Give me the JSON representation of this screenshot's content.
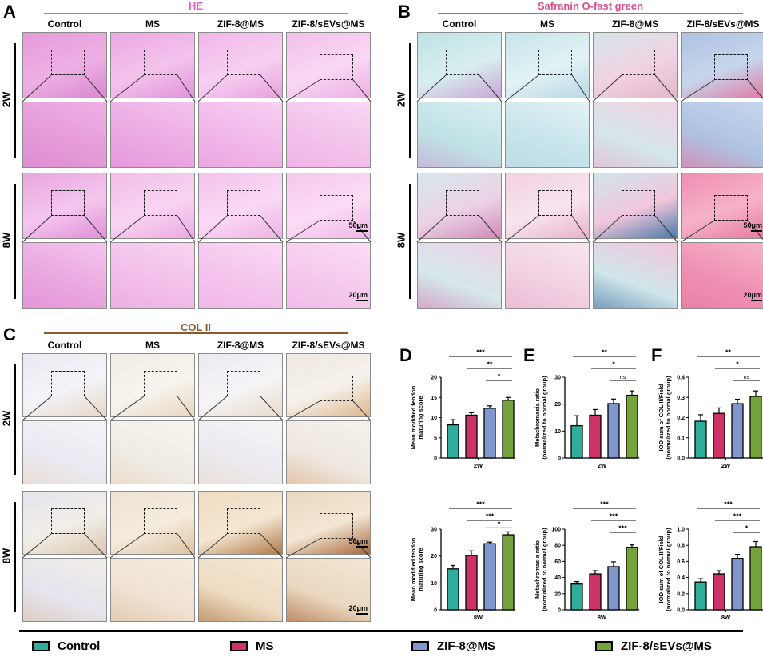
{
  "groups": [
    "Control",
    "MS",
    "ZIF-8@MS",
    "ZIF-8/sEVs@MS"
  ],
  "group_colors": [
    "#2fae9c",
    "#cc3366",
    "#7f97cc",
    "#74a33b"
  ],
  "timepoints": [
    "2W",
    "8W"
  ],
  "panels": {
    "A": {
      "letter": "A",
      "title": "HE",
      "title_color": "#ee55cc",
      "scale_low": "50μm",
      "scale_high": "20μm"
    },
    "B": {
      "letter": "B",
      "title": "Safranin O-fast green",
      "title_color": "#d9508a",
      "scale_low": "50μm",
      "scale_high": "20μm"
    },
    "C": {
      "letter": "C",
      "title": "COL II",
      "title_color": "#8a5a2b",
      "scale_low": "50μm",
      "scale_high": "20μm"
    },
    "D": {
      "letter": "D"
    },
    "E": {
      "letter": "E"
    },
    "F": {
      "letter": "F"
    }
  },
  "legend": [
    {
      "label": "Control",
      "color": "#2fae9c"
    },
    {
      "label": "MS",
      "color": "#cc3366"
    },
    {
      "label": "ZIF-8@MS",
      "color": "#7f97cc"
    },
    {
      "label": "ZIF-8/sEVs@MS",
      "color": "#74a33b"
    }
  ],
  "chart_data": [
    {
      "id": "D-2W",
      "type": "bar",
      "title": "",
      "xlabel": "2W",
      "ylabel": "Mean modified tendon maturing score",
      "categories": [
        "Control",
        "MS",
        "ZIF-8@MS",
        "ZIF-8/sEVs@MS"
      ],
      "values": [
        8.2,
        10.6,
        12.3,
        14.3
      ],
      "errors": [
        1.3,
        0.6,
        0.6,
        0.7
      ],
      "ylim": [
        0,
        20
      ],
      "yticks": [
        0,
        5,
        10,
        15,
        20
      ],
      "ytick_labels": [
        "0",
        "5",
        "10",
        "15",
        "20"
      ],
      "significance": [
        {
          "from": 0,
          "to": 3,
          "label": "***"
        },
        {
          "from": 1,
          "to": 3,
          "label": "**"
        },
        {
          "from": 2,
          "to": 3,
          "label": "*"
        }
      ]
    },
    {
      "id": "D-8W",
      "type": "bar",
      "title": "",
      "xlabel": "8W",
      "ylabel": "Mean modified tendon maturing score",
      "categories": [
        "Control",
        "MS",
        "ZIF-8@MS",
        "ZIF-8/sEVs@MS"
      ],
      "values": [
        15.2,
        20.2,
        24.6,
        27.9
      ],
      "errors": [
        1.3,
        1.7,
        0.6,
        1.1
      ],
      "ylim": [
        0,
        30
      ],
      "yticks": [
        0,
        10,
        20,
        30
      ],
      "ytick_labels": [
        "0",
        "10",
        "20",
        "30"
      ],
      "significance": [
        {
          "from": 0,
          "to": 3,
          "label": "***"
        },
        {
          "from": 1,
          "to": 3,
          "label": "***"
        },
        {
          "from": 2,
          "to": 3,
          "label": "*"
        }
      ]
    },
    {
      "id": "E-2W",
      "type": "bar",
      "title": "",
      "xlabel": "2W",
      "ylabel": "Metachromasia ratio (normalized to normal group)",
      "categories": [
        "Control",
        "MS",
        "ZIF-8@MS",
        "ZIF-8/sEVs@MS"
      ],
      "values": [
        12.0,
        15.9,
        20.2,
        23.3
      ],
      "errors": [
        3.7,
        2.1,
        1.7,
        1.6
      ],
      "ylim": [
        0,
        30
      ],
      "yticks": [
        0,
        10,
        20,
        30
      ],
      "ytick_labels": [
        "0",
        "10",
        "20",
        "30"
      ],
      "significance": [
        {
          "from": 0,
          "to": 3,
          "label": "**"
        },
        {
          "from": 1,
          "to": 3,
          "label": "*"
        },
        {
          "from": 2,
          "to": 3,
          "label": "ns"
        }
      ]
    },
    {
      "id": "E-8W",
      "type": "bar",
      "title": "",
      "xlabel": "8W",
      "ylabel": "Metachromasia ratio (normalized to normal group)",
      "categories": [
        "Control",
        "MS",
        "ZIF-8@MS",
        "ZIF-8/sEVs@MS"
      ],
      "values": [
        32.0,
        44.5,
        53.5,
        77.5
      ],
      "errors": [
        3.0,
        4.0,
        6.0,
        3.0
      ],
      "ylim": [
        0,
        100
      ],
      "yticks": [
        0,
        20,
        40,
        60,
        80,
        100
      ],
      "ytick_labels": [
        "0",
        "20",
        "40",
        "60",
        "80",
        "100"
      ],
      "significance": [
        {
          "from": 0,
          "to": 3,
          "label": "***"
        },
        {
          "from": 1,
          "to": 3,
          "label": "***"
        },
        {
          "from": 2,
          "to": 3,
          "label": "***"
        }
      ]
    },
    {
      "id": "F-2W",
      "type": "bar",
      "title": "",
      "xlabel": "2W",
      "ylabel": "IOD sum of COL II/Field (normalized to normal group)",
      "categories": [
        "Control",
        "MS",
        "ZIF-8@MS",
        "ZIF-8/sEVs@MS"
      ],
      "values": [
        0.182,
        0.221,
        0.269,
        0.305
      ],
      "errors": [
        0.032,
        0.027,
        0.022,
        0.027
      ],
      "ylim": [
        0,
        0.4
      ],
      "yticks": [
        0,
        0.1,
        0.2,
        0.3,
        0.4
      ],
      "ytick_labels": [
        "0.0",
        "0.1",
        "0.2",
        "0.3",
        "0.4"
      ],
      "significance": [
        {
          "from": 0,
          "to": 3,
          "label": "**"
        },
        {
          "from": 1,
          "to": 3,
          "label": "*"
        },
        {
          "from": 2,
          "to": 3,
          "label": "ns"
        }
      ]
    },
    {
      "id": "F-8W",
      "type": "bar",
      "title": "",
      "xlabel": "8W",
      "ylabel": "IOD sum of COL II/Field (normalized to normal group)",
      "categories": [
        "Control",
        "MS",
        "ZIF-8@MS",
        "ZIF-8/sEVs@MS"
      ],
      "values": [
        0.345,
        0.445,
        0.637,
        0.782
      ],
      "errors": [
        0.04,
        0.04,
        0.05,
        0.065
      ],
      "ylim": [
        0,
        1.0
      ],
      "yticks": [
        0,
        0.2,
        0.4,
        0.6,
        0.8,
        1.0
      ],
      "ytick_labels": [
        "0.0",
        "0.2",
        "0.4",
        "0.6",
        "0.8",
        "1.0"
      ],
      "significance": [
        {
          "from": 0,
          "to": 3,
          "label": "***"
        },
        {
          "from": 1,
          "to": 3,
          "label": "***"
        },
        {
          "from": 2,
          "to": 3,
          "label": "*"
        }
      ]
    }
  ]
}
